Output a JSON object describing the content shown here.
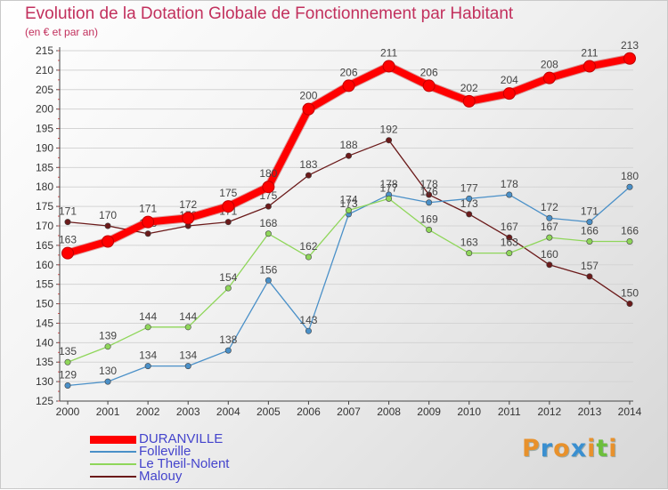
{
  "header": {
    "title": "Evolution de la Dotation Globale de Fonctionnement par Habitant",
    "subtitle": "(en € et par an)"
  },
  "brand": {
    "text": "Proxiti",
    "colors": [
      "#e8912c",
      "#3a8fd0",
      "#e8912c",
      "#3a8fd0",
      "#e8912c",
      "#6cbf3c",
      "#e8912c"
    ]
  },
  "chart_data": {
    "type": "line",
    "x": [
      2000,
      2001,
      2002,
      2003,
      2004,
      2005,
      2006,
      2007,
      2008,
      2009,
      2010,
      2011,
      2012,
      2013,
      2014
    ],
    "ylim": [
      125,
      215
    ],
    "yticks": [
      125,
      130,
      135,
      140,
      145,
      150,
      155,
      160,
      165,
      170,
      175,
      180,
      185,
      190,
      195,
      200,
      205,
      210,
      215
    ],
    "grid": "horizontal",
    "legend_position": "bottom-left",
    "series": [
      {
        "name": "DURANVILLE",
        "color": "#ff0000",
        "values": [
          163,
          166,
          171,
          172,
          175,
          180,
          200,
          206,
          211,
          206,
          202,
          204,
          208,
          211,
          213
        ],
        "labels": [
          "163",
          "",
          "171",
          "172",
          "175",
          "180",
          "200",
          "206",
          "211",
          "206",
          "202",
          "204",
          "208",
          "211",
          "213"
        ]
      },
      {
        "name": "Folleville",
        "color": "#4a90c8",
        "values": [
          129,
          130,
          134,
          134,
          138,
          156,
          143,
          173,
          178,
          176,
          177,
          178,
          172,
          171,
          180
        ],
        "labels": [
          "129",
          "130",
          "134",
          "134",
          "138",
          "156",
          "143",
          "173",
          "178",
          "176",
          "177",
          "178",
          "172",
          "171",
          "180"
        ]
      },
      {
        "name": "Le Theil-Nolent",
        "color": "#8fd65a",
        "values": [
          135,
          139,
          144,
          144,
          154,
          168,
          162,
          174,
          177,
          169,
          163,
          163,
          167,
          166,
          166
        ],
        "labels": [
          "135",
          "139",
          "144",
          "144",
          "154",
          "168",
          "162",
          "174",
          "177",
          "169",
          "163",
          "163",
          "167",
          "166",
          "166"
        ]
      },
      {
        "name": "Malouy",
        "color": "#6b1a1a",
        "values": [
          171,
          170,
          168,
          170,
          171,
          175,
          183,
          188,
          192,
          178,
          173,
          167,
          160,
          157,
          150
        ],
        "labels": [
          "171",
          "170",
          "168",
          "170",
          "171",
          "175",
          "183",
          "188",
          "192",
          "178",
          "173",
          "167",
          "160",
          "157",
          "150"
        ]
      }
    ]
  }
}
